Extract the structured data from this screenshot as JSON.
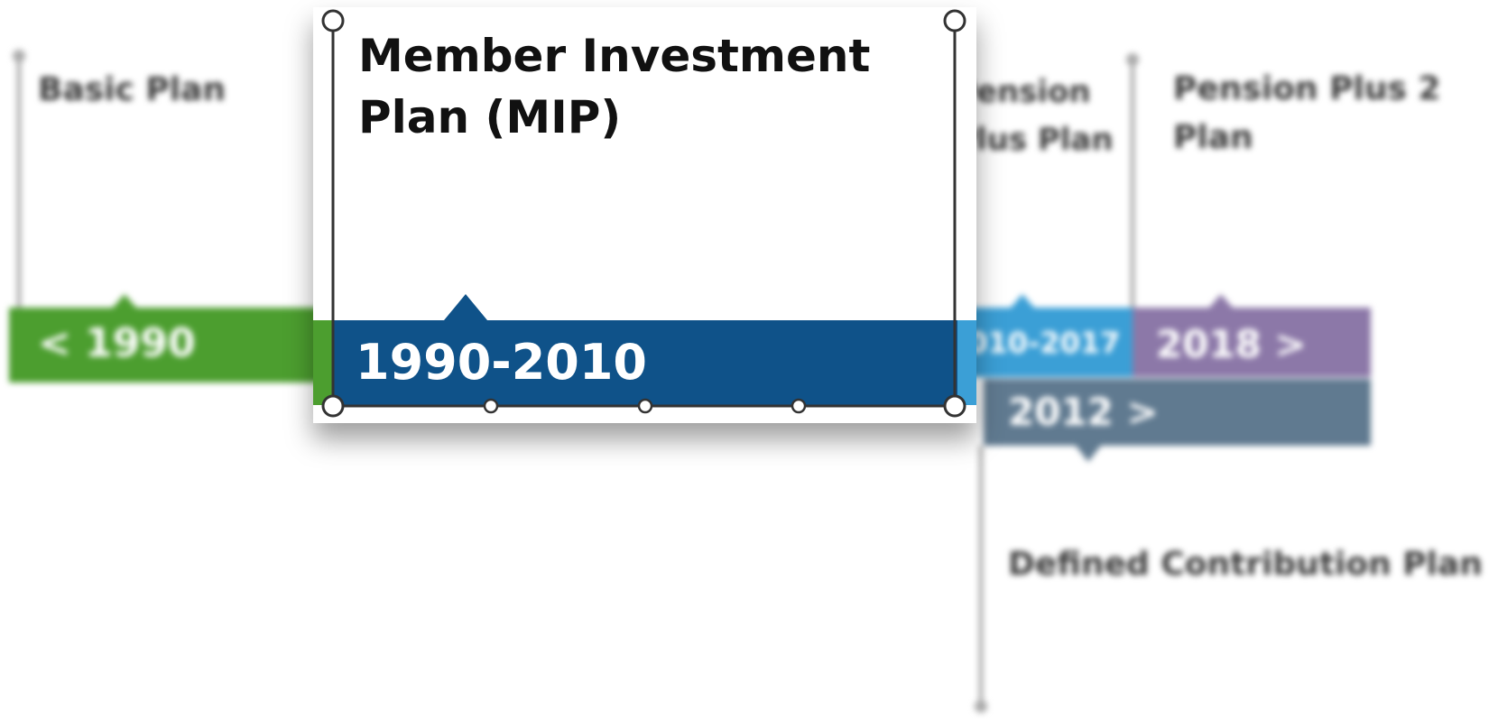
{
  "plans": [
    {
      "period": "< 1990",
      "name": "Basic Plan"
    },
    {
      "period": "1990-2010",
      "name": "Member Investment Plan (MIP)"
    },
    {
      "period": "2010-2017",
      "name": "Pension Plus Plan"
    },
    {
      "period": "2018 >",
      "name": "Pension Plus 2 Plan"
    },
    {
      "period": "2012 >",
      "name": "Defined Contribution Plan"
    }
  ]
}
